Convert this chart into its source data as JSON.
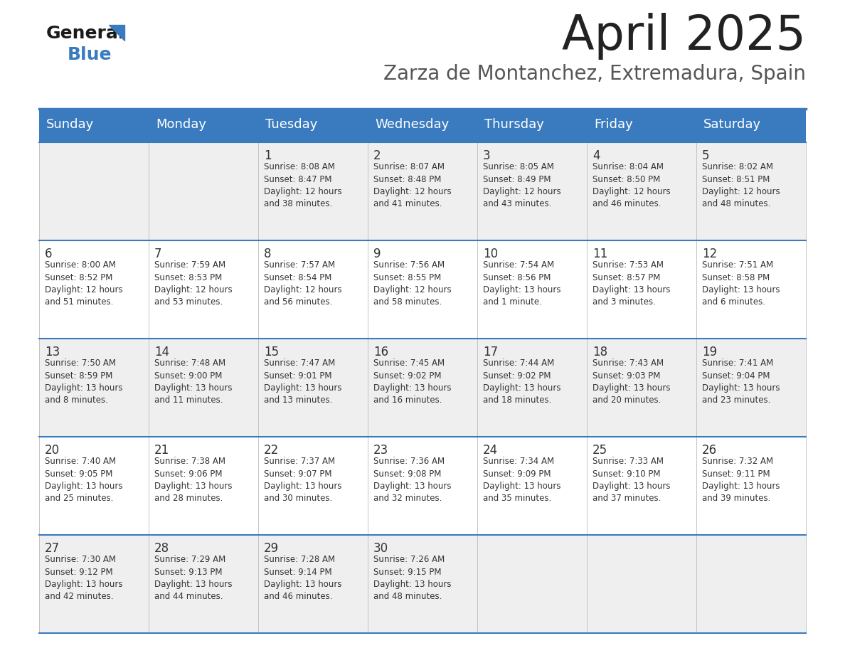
{
  "title": "April 2025",
  "subtitle": "Zarza de Montanchez, Extremadura, Spain",
  "days_of_week": [
    "Sunday",
    "Monday",
    "Tuesday",
    "Wednesday",
    "Thursday",
    "Friday",
    "Saturday"
  ],
  "header_bg": "#3a7bbf",
  "header_text": "#ffffff",
  "row_bg_odd": "#efefef",
  "row_bg_even": "#ffffff",
  "border_color": "#3a7bbf",
  "text_color": "#333333",
  "title_color": "#222222",
  "subtitle_color": "#555555",
  "calendar": [
    [
      {
        "day": "",
        "info": ""
      },
      {
        "day": "",
        "info": ""
      },
      {
        "day": "1",
        "info": "Sunrise: 8:08 AM\nSunset: 8:47 PM\nDaylight: 12 hours\nand 38 minutes."
      },
      {
        "day": "2",
        "info": "Sunrise: 8:07 AM\nSunset: 8:48 PM\nDaylight: 12 hours\nand 41 minutes."
      },
      {
        "day": "3",
        "info": "Sunrise: 8:05 AM\nSunset: 8:49 PM\nDaylight: 12 hours\nand 43 minutes."
      },
      {
        "day": "4",
        "info": "Sunrise: 8:04 AM\nSunset: 8:50 PM\nDaylight: 12 hours\nand 46 minutes."
      },
      {
        "day": "5",
        "info": "Sunrise: 8:02 AM\nSunset: 8:51 PM\nDaylight: 12 hours\nand 48 minutes."
      }
    ],
    [
      {
        "day": "6",
        "info": "Sunrise: 8:00 AM\nSunset: 8:52 PM\nDaylight: 12 hours\nand 51 minutes."
      },
      {
        "day": "7",
        "info": "Sunrise: 7:59 AM\nSunset: 8:53 PM\nDaylight: 12 hours\nand 53 minutes."
      },
      {
        "day": "8",
        "info": "Sunrise: 7:57 AM\nSunset: 8:54 PM\nDaylight: 12 hours\nand 56 minutes."
      },
      {
        "day": "9",
        "info": "Sunrise: 7:56 AM\nSunset: 8:55 PM\nDaylight: 12 hours\nand 58 minutes."
      },
      {
        "day": "10",
        "info": "Sunrise: 7:54 AM\nSunset: 8:56 PM\nDaylight: 13 hours\nand 1 minute."
      },
      {
        "day": "11",
        "info": "Sunrise: 7:53 AM\nSunset: 8:57 PM\nDaylight: 13 hours\nand 3 minutes."
      },
      {
        "day": "12",
        "info": "Sunrise: 7:51 AM\nSunset: 8:58 PM\nDaylight: 13 hours\nand 6 minutes."
      }
    ],
    [
      {
        "day": "13",
        "info": "Sunrise: 7:50 AM\nSunset: 8:59 PM\nDaylight: 13 hours\nand 8 minutes."
      },
      {
        "day": "14",
        "info": "Sunrise: 7:48 AM\nSunset: 9:00 PM\nDaylight: 13 hours\nand 11 minutes."
      },
      {
        "day": "15",
        "info": "Sunrise: 7:47 AM\nSunset: 9:01 PM\nDaylight: 13 hours\nand 13 minutes."
      },
      {
        "day": "16",
        "info": "Sunrise: 7:45 AM\nSunset: 9:02 PM\nDaylight: 13 hours\nand 16 minutes."
      },
      {
        "day": "17",
        "info": "Sunrise: 7:44 AM\nSunset: 9:02 PM\nDaylight: 13 hours\nand 18 minutes."
      },
      {
        "day": "18",
        "info": "Sunrise: 7:43 AM\nSunset: 9:03 PM\nDaylight: 13 hours\nand 20 minutes."
      },
      {
        "day": "19",
        "info": "Sunrise: 7:41 AM\nSunset: 9:04 PM\nDaylight: 13 hours\nand 23 minutes."
      }
    ],
    [
      {
        "day": "20",
        "info": "Sunrise: 7:40 AM\nSunset: 9:05 PM\nDaylight: 13 hours\nand 25 minutes."
      },
      {
        "day": "21",
        "info": "Sunrise: 7:38 AM\nSunset: 9:06 PM\nDaylight: 13 hours\nand 28 minutes."
      },
      {
        "day": "22",
        "info": "Sunrise: 7:37 AM\nSunset: 9:07 PM\nDaylight: 13 hours\nand 30 minutes."
      },
      {
        "day": "23",
        "info": "Sunrise: 7:36 AM\nSunset: 9:08 PM\nDaylight: 13 hours\nand 32 minutes."
      },
      {
        "day": "24",
        "info": "Sunrise: 7:34 AM\nSunset: 9:09 PM\nDaylight: 13 hours\nand 35 minutes."
      },
      {
        "day": "25",
        "info": "Sunrise: 7:33 AM\nSunset: 9:10 PM\nDaylight: 13 hours\nand 37 minutes."
      },
      {
        "day": "26",
        "info": "Sunrise: 7:32 AM\nSunset: 9:11 PM\nDaylight: 13 hours\nand 39 minutes."
      }
    ],
    [
      {
        "day": "27",
        "info": "Sunrise: 7:30 AM\nSunset: 9:12 PM\nDaylight: 13 hours\nand 42 minutes."
      },
      {
        "day": "28",
        "info": "Sunrise: 7:29 AM\nSunset: 9:13 PM\nDaylight: 13 hours\nand 44 minutes."
      },
      {
        "day": "29",
        "info": "Sunrise: 7:28 AM\nSunset: 9:14 PM\nDaylight: 13 hours\nand 46 minutes."
      },
      {
        "day": "30",
        "info": "Sunrise: 7:26 AM\nSunset: 9:15 PM\nDaylight: 13 hours\nand 48 minutes."
      },
      {
        "day": "",
        "info": ""
      },
      {
        "day": "",
        "info": ""
      },
      {
        "day": "",
        "info": ""
      }
    ]
  ]
}
